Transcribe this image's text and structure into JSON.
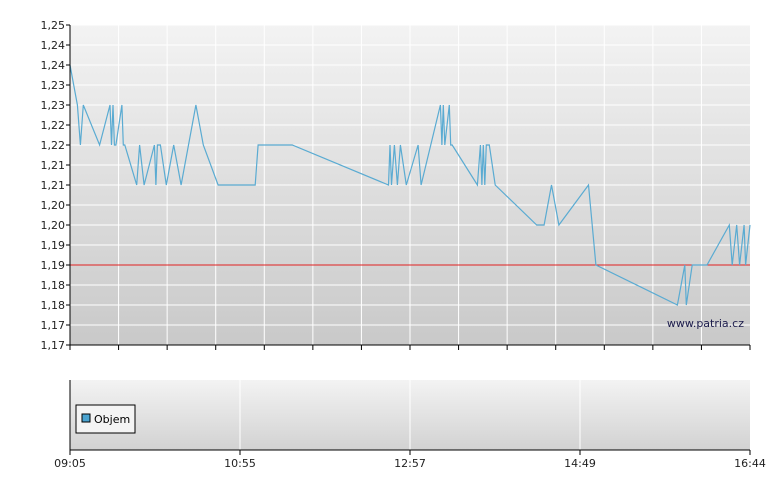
{
  "chart_data": {
    "type": "line",
    "series": [
      {
        "x": [
          "09:05",
          "09:10",
          "09:12",
          "09:14",
          "09:25",
          "09:32",
          "09:33",
          "09:34",
          "09:35",
          "09:36",
          "09:40",
          "09:41",
          "09:42",
          "09:50",
          "09:52",
          "09:55",
          "10:02",
          "10:03",
          "10:04",
          "10:06",
          "10:10",
          "10:15",
          "10:20",
          "10:25",
          "10:30",
          "10:35",
          "10:45",
          "11:10",
          "11:12",
          "11:15",
          "11:35",
          "12:40",
          "12:41",
          "12:42",
          "12:44",
          "12:46",
          "12:48",
          "12:52",
          "13:00",
          "13:02",
          "13:15",
          "13:16",
          "13:17",
          "13:18",
          "13:21",
          "13:22",
          "13:23",
          "13:40",
          "13:42",
          "13:43",
          "13:44",
          "13:45",
          "13:46",
          "13:47",
          "13:48",
          "13:52",
          "14:20",
          "14:25",
          "14:30",
          "14:35",
          "14:55",
          "15:00",
          "15:55",
          "16:00",
          "16:01",
          "16:05",
          "16:15",
          "16:30",
          "16:32",
          "16:35",
          "16:37",
          "16:40",
          "16:41",
          "16:44"
        ],
        "values": [
          1.24,
          1.23,
          1.22,
          1.23,
          1.22,
          1.23,
          1.22,
          1.23,
          1.22,
          1.22,
          1.23,
          1.22,
          1.22,
          1.21,
          1.22,
          1.21,
          1.22,
          1.21,
          1.22,
          1.22,
          1.21,
          1.22,
          1.21,
          1.22,
          1.23,
          1.22,
          1.21,
          1.21,
          1.22,
          1.22,
          1.22,
          1.21,
          1.22,
          1.21,
          1.22,
          1.21,
          1.22,
          1.21,
          1.22,
          1.21,
          1.23,
          1.22,
          1.23,
          1.22,
          1.23,
          1.22,
          1.22,
          1.21,
          1.22,
          1.21,
          1.22,
          1.21,
          1.22,
          1.22,
          1.22,
          1.21,
          1.2,
          1.2,
          1.21,
          1.2,
          1.21,
          1.19,
          1.18,
          1.19,
          1.18,
          1.19,
          1.19,
          1.2,
          1.19,
          1.2,
          1.19,
          1.2,
          1.19,
          1.2
        ],
        "color": "#5aabd2"
      }
    ],
    "reference_line": {
      "value": 1.19,
      "color": "#e02020"
    },
    "ylim": [
      1.17,
      1.25
    ],
    "y_ticks": [
      "1,17",
      "1,17",
      "1,18",
      "1,18",
      "1,19",
      "1,19",
      "1,20",
      "1,20",
      "1,21",
      "1,21",
      "1,22",
      "1,22",
      "1,23",
      "1,23",
      "1,24",
      "1,24",
      "1,25"
    ],
    "x_tick_labels": [
      "09:05",
      "10:55",
      "12:57",
      "14:49",
      "16:44"
    ],
    "grid": true,
    "watermark": "www.patria.cz",
    "legend": {
      "label": "Objem",
      "color": "#4aa3d0",
      "placement": "bottom-left"
    }
  }
}
